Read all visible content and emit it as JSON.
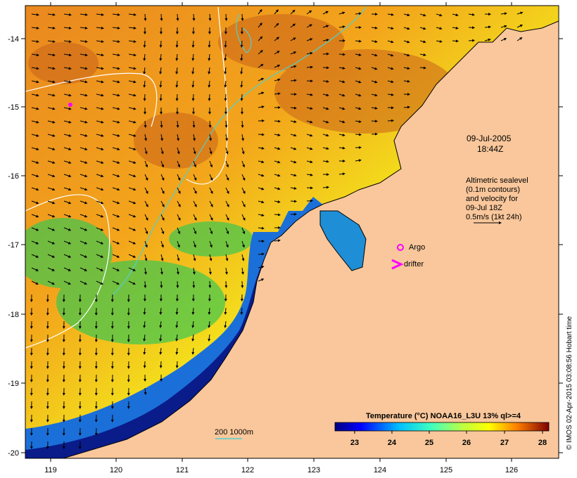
{
  "map": {
    "date": "09-Jul-2005",
    "time": "18:44Z",
    "altimetry_lines": [
      "Altimetric sealevel",
      "(0.1m contours)",
      "and velocity for",
      "09-Jul 18Z",
      "0.5m/s (1kt 24h)"
    ],
    "legend_argo": "Argo",
    "legend_drifter": "drifter",
    "isobath_label": "200  1000m",
    "colorbar_title": "Temperature (°C) NOAA16_L3U 13% ql>=4",
    "colorbar_ticks": [
      "23",
      "24",
      "25",
      "26",
      "27",
      "28"
    ],
    "lon_ticks": [
      "119",
      "120",
      "121",
      "122",
      "123",
      "124",
      "125",
      "126"
    ],
    "lat_ticks": [
      "-14",
      "-15",
      "-16",
      "-17",
      "-18",
      "-19",
      "-20"
    ],
    "credit": "© IMOS 02-Apr-2015 03:08:56 Hobart time",
    "colors": {
      "land": "#f9c79b",
      "sst_warm": "#e8801c",
      "sst_mid": "#f7e11a",
      "sst_cool": "#25c468",
      "sst_cold": "#0c1d8c",
      "argo": "#ff00ff",
      "isobath": "#4fd1cf"
    }
  }
}
